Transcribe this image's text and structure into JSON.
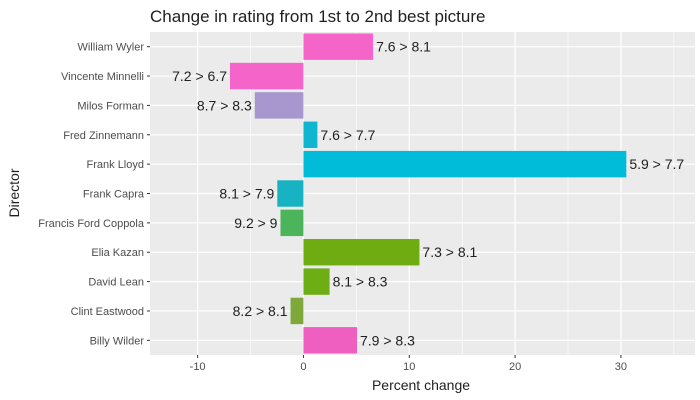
{
  "chart_data": {
    "type": "bar",
    "orientation": "horizontal",
    "title": "Change in rating from 1st to 2nd best picture",
    "xlabel": "Percent change",
    "ylabel": "Director",
    "xlim": [
      -14.5,
      37
    ],
    "xticks": [
      -10,
      0,
      10,
      20,
      30
    ],
    "grid": true,
    "legend": "none",
    "categories": [
      "William Wyler",
      "Vincente Minnelli",
      "Milos Forman",
      "Fred Zinnemann",
      "Frank Lloyd",
      "Frank Capra",
      "Francis Ford Coppola",
      "Elia Kazan",
      "David Lean",
      "Clint Eastwood",
      "Billy Wilder"
    ],
    "values": [
      6.58,
      -6.94,
      -4.6,
      1.32,
      30.51,
      -2.47,
      -2.17,
      10.96,
      2.47,
      -1.22,
      5.06
    ],
    "labels": [
      "7.6 > 8.1",
      "7.2 > 6.7",
      "8.7 > 8.3",
      "7.6 > 7.7",
      "5.9 > 7.7",
      "8.1 > 7.9",
      "9.2 > 9",
      "7.3 > 8.1",
      "8.1 > 8.3",
      "8.2 > 8.1",
      "7.9 > 8.3"
    ],
    "colors": [
      "#f564c8",
      "#f564c8",
      "#a896cf",
      "#10b6cf",
      "#00bcd8",
      "#18b3c3",
      "#4cb45a",
      "#6eac12",
      "#6cae14",
      "#7fa83a",
      "#ee5fbf"
    ],
    "panel_background": "#ebebeb",
    "grid_color": "#ffffff"
  }
}
